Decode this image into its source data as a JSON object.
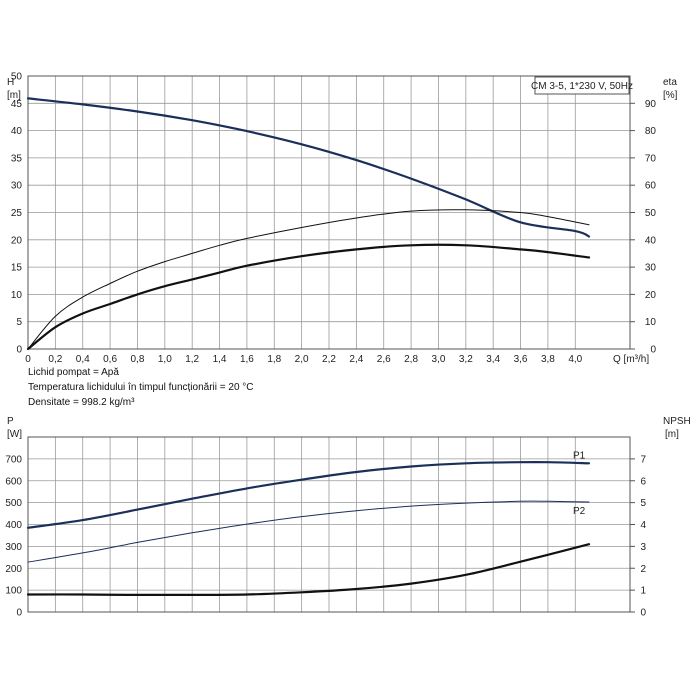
{
  "chart_data": [
    {
      "type": "line",
      "name": "head-efficiency",
      "title": "CM 3-5, 1*230 V, 50Hz",
      "left_axis": {
        "label_top": "H",
        "label_unit": "[m]",
        "ylim": [
          0,
          50
        ],
        "ticks": [
          0,
          5,
          10,
          15,
          20,
          25,
          30,
          35,
          40,
          45,
          50
        ]
      },
      "right_axis": {
        "label_top": "eta",
        "label_unit": "[%]",
        "ylim": [
          0,
          100
        ],
        "ticks": [
          0,
          10,
          20,
          30,
          40,
          50,
          60,
          70,
          80,
          90
        ]
      },
      "x_axis": {
        "label": "Q [m³/h]",
        "xlim": [
          0,
          4.4
        ],
        "ticks": [
          "0",
          "0,2",
          "0,4",
          "0,6",
          "0,8",
          "1,0",
          "1,2",
          "1,4",
          "1,6",
          "1,8",
          "2,0",
          "2,2",
          "2,4",
          "2,6",
          "2,8",
          "3,0",
          "3,2",
          "3,4",
          "3,6",
          "3,8",
          "4,0"
        ]
      },
      "grid": true,
      "series": [
        {
          "name": "H",
          "axis": "left",
          "color": "#1a2f5a",
          "width": 2.2,
          "x": [
            0,
            0.4,
            0.8,
            1.2,
            1.6,
            2.0,
            2.4,
            2.8,
            3.2,
            3.6,
            4.0,
            4.1
          ],
          "y": [
            45.9,
            44.8,
            43.5,
            41.9,
            39.9,
            37.5,
            34.6,
            31.2,
            27.4,
            23.2,
            21.6,
            20.6
          ]
        },
        {
          "name": "eta-upper",
          "axis": "right",
          "color": "#111111",
          "width": 1,
          "x": [
            0,
            0.2,
            0.4,
            0.6,
            0.8,
            1.0,
            1.2,
            1.4,
            1.6,
            2.0,
            2.4,
            2.8,
            3.2,
            3.6,
            3.8,
            4.1
          ],
          "y": [
            0,
            12,
            19,
            24,
            28.5,
            32,
            35,
            38,
            40.5,
            44.5,
            48,
            50.5,
            51,
            50,
            48.5,
            45.5
          ]
        },
        {
          "name": "eta-lower",
          "axis": "right",
          "color": "#111111",
          "width": 2.2,
          "x": [
            0,
            0.2,
            0.4,
            0.6,
            0.8,
            1.0,
            1.2,
            1.4,
            1.6,
            2.0,
            2.4,
            2.8,
            3.2,
            3.6,
            3.8,
            4.1
          ],
          "y": [
            0,
            8,
            13,
            16.5,
            20,
            23,
            25.5,
            28,
            30.5,
            34,
            36.5,
            38,
            38,
            36.5,
            35.5,
            33.5
          ]
        }
      ]
    },
    {
      "type": "line",
      "name": "power-npsh",
      "left_axis": {
        "label_top": "P",
        "label_unit": "[W]",
        "ylim": [
          0,
          800
        ],
        "ticks": [
          0,
          100,
          200,
          300,
          400,
          500,
          600,
          700
        ]
      },
      "right_axis": {
        "label_top": "NPSH",
        "label_unit": "[m]",
        "ylim": [
          0,
          8
        ],
        "ticks": [
          0,
          1,
          2,
          3,
          4,
          5,
          6,
          7
        ]
      },
      "grid": true,
      "series": [
        {
          "name": "P1",
          "label": "P1",
          "axis": "left",
          "color": "#1a2f5a",
          "width": 2.2,
          "x": [
            0,
            0.4,
            0.8,
            1.2,
            1.6,
            2.0,
            2.4,
            2.8,
            3.2,
            3.6,
            3.8,
            4.1
          ],
          "y": [
            385,
            420,
            468,
            518,
            565,
            605,
            640,
            665,
            680,
            685,
            685,
            680
          ]
        },
        {
          "name": "P2",
          "label": "P2",
          "axis": "left",
          "color": "#1a2f5a",
          "width": 1,
          "x": [
            0,
            0.4,
            0.8,
            1.2,
            1.6,
            2.0,
            2.4,
            2.8,
            3.2,
            3.6,
            3.8,
            4.1
          ],
          "y": [
            228,
            270,
            318,
            362,
            402,
            436,
            463,
            484,
            498,
            506,
            506,
            503
          ]
        },
        {
          "name": "NPSH",
          "axis": "right",
          "color": "#111111",
          "width": 2.2,
          "x": [
            0,
            0.4,
            0.8,
            1.2,
            1.6,
            2.0,
            2.4,
            2.8,
            3.2,
            3.6,
            4.1
          ],
          "y": [
            0.8,
            0.8,
            0.78,
            0.78,
            0.8,
            0.9,
            1.05,
            1.3,
            1.7,
            2.3,
            3.1
          ]
        }
      ]
    }
  ],
  "notes": [
    "Lichid pompat = Apă",
    "Temperatura lichidului în timpul funcționării = 20 °C",
    "Densitate = 998.2 kg/m³"
  ]
}
